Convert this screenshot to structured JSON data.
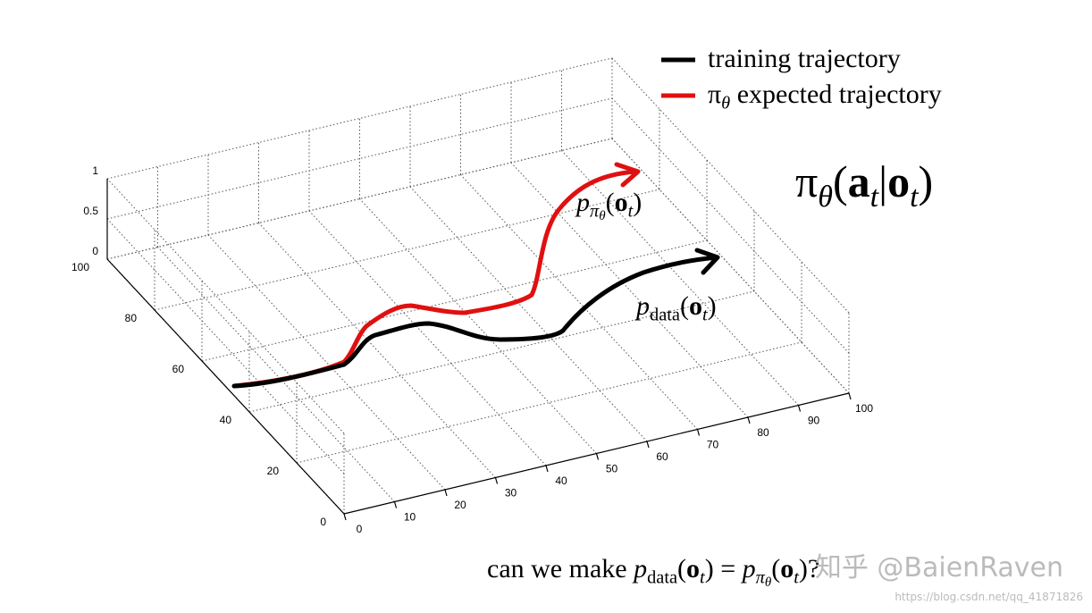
{
  "legend": [
    {
      "label": "training trajectory"
    },
    {
      "parts": [
        "π",
        "θ",
        " expected trajectory"
      ]
    }
  ],
  "formula": {
    "parts": [
      "π",
      "θ",
      "(",
      "a",
      "t",
      "|",
      "o",
      "t",
      ")"
    ]
  },
  "annotations": [
    {
      "parts": [
        "p",
        "π",
        "θ",
        "(",
        "o",
        "t",
        ")"
      ]
    },
    {
      "parts": [
        "p",
        "data",
        "(",
        "o",
        "t",
        ")"
      ]
    }
  ],
  "axes": {
    "x_ticks": [
      "0",
      "10",
      "20",
      "30",
      "40",
      "50",
      "60",
      "70",
      "80",
      "90",
      "100"
    ],
    "y_ticks": [
      "0",
      "20",
      "40",
      "60",
      "80",
      "100"
    ],
    "z_ticks": [
      "0",
      "0.5",
      "1"
    ]
  },
  "question": {
    "parts": [
      "can we make ",
      "p",
      "data",
      "(",
      "o",
      "t",
      ")",
      " = ",
      "p",
      "π",
      "θ",
      "(",
      "o",
      "t",
      ")?"
    ]
  },
  "watermark": "知乎 @BaienRaven",
  "url": "https://blog.csdn.net/qq_41871826"
}
